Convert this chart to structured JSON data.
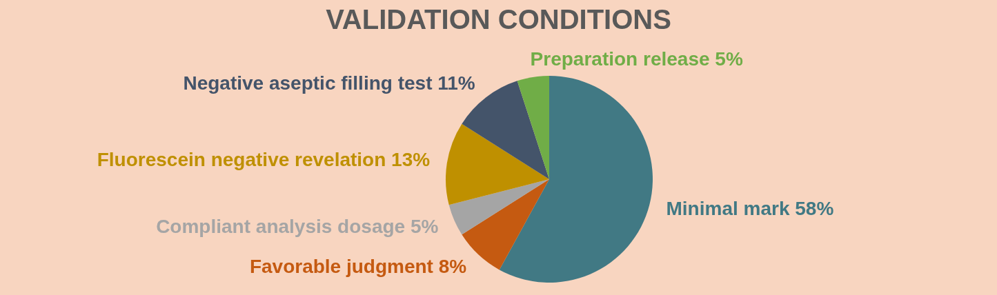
{
  "chart_data": {
    "type": "pie",
    "title": "VALIDATION CONDITIONS",
    "categories": [
      "Minimal mark",
      "Favorable judgment",
      "Compliant analysis dosage",
      "Fluorescein negative revelation",
      "Negative aseptic filling test",
      "Preparation release"
    ],
    "values": [
      58,
      8,
      5,
      13,
      11,
      5
    ],
    "value_labels": [
      "58%",
      "8%",
      "5%",
      "13%",
      "11%",
      "5%"
    ],
    "colors": [
      "#417984",
      "#c55a11",
      "#a5a5a5",
      "#bf9000",
      "#44546a",
      "#70ad47"
    ]
  }
}
